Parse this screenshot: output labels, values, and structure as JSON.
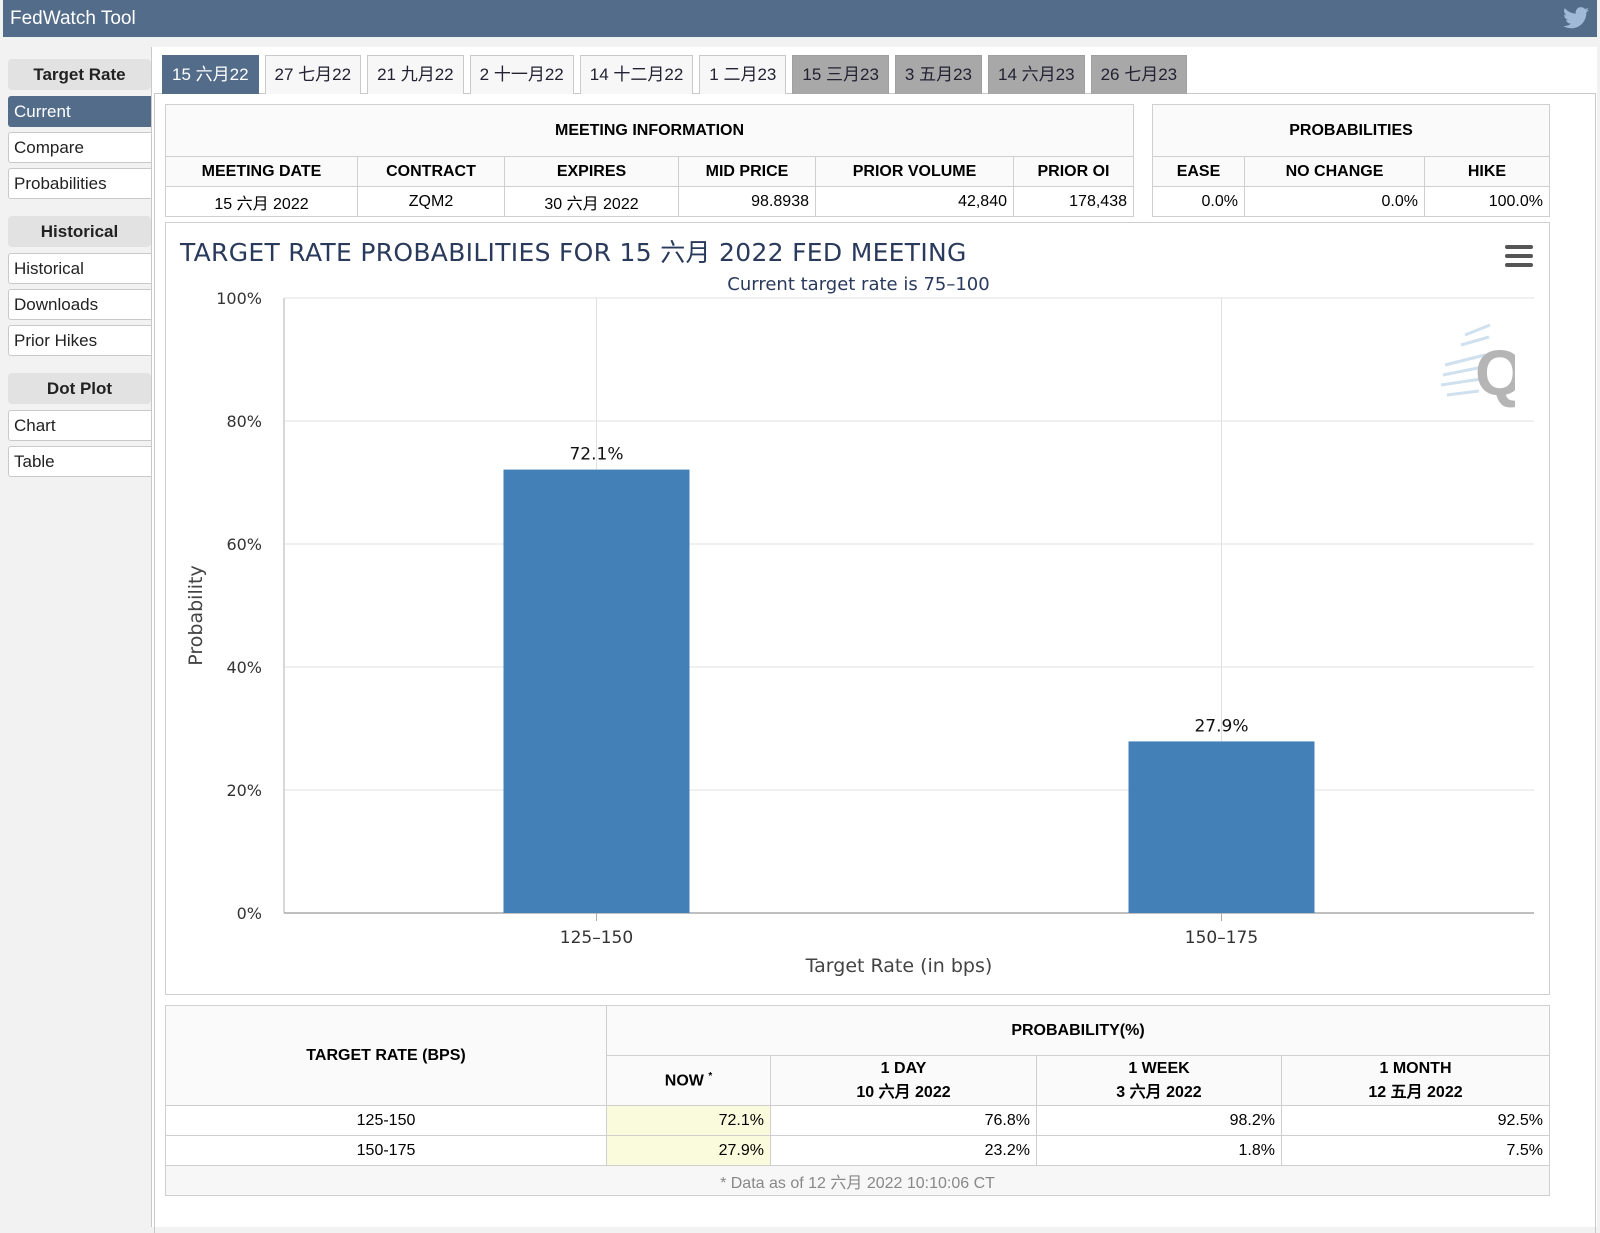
{
  "app": {
    "title": "FedWatch Tool"
  },
  "sidebar": {
    "sections": [
      {
        "heading": "Target Rate",
        "items": [
          "Current",
          "Compare",
          "Probabilities"
        ]
      },
      {
        "heading": "Historical",
        "items": [
          "Historical",
          "Downloads",
          "Prior Hikes"
        ]
      },
      {
        "heading": "Dot Plot",
        "items": [
          "Chart",
          "Table"
        ]
      }
    ],
    "active_item": "Current"
  },
  "tabs": [
    {
      "label": "15 六月22",
      "state": "active"
    },
    {
      "label": "27 七月22",
      "state": "normal"
    },
    {
      "label": "21 九月22",
      "state": "normal"
    },
    {
      "label": "2 十一月22",
      "state": "normal"
    },
    {
      "label": "14 十二月22",
      "state": "normal"
    },
    {
      "label": "1 二月23",
      "state": "normal"
    },
    {
      "label": "15 三月23",
      "state": "future"
    },
    {
      "label": "3 五月23",
      "state": "future"
    },
    {
      "label": "14 六月23",
      "state": "future"
    },
    {
      "label": "26 七月23",
      "state": "future"
    }
  ],
  "meeting_info": {
    "heading": "MEETING INFORMATION",
    "columns": [
      "MEETING DATE",
      "CONTRACT",
      "EXPIRES",
      "MID PRICE",
      "PRIOR VOLUME",
      "PRIOR OI"
    ],
    "row": [
      "15 六月 2022",
      "ZQM2",
      "30 六月 2022",
      "98.8938",
      "42,840",
      "178,438"
    ]
  },
  "probabilities": {
    "heading": "PROBABILITIES",
    "columns": [
      "EASE",
      "NO CHANGE",
      "HIKE"
    ],
    "row": [
      "0.0%",
      "0.0%",
      "100.0%"
    ]
  },
  "chart": {
    "menu_icon": "hamburger-menu-icon",
    "watermark": "Q"
  },
  "chart_data": {
    "type": "bar",
    "title": "TARGET RATE PROBABILITIES FOR 15 六月 2022 FED MEETING",
    "subtitle": "Current target rate is 75–100",
    "xlabel": "Target Rate (in bps)",
    "ylabel": "Probability",
    "categories": [
      "125–150",
      "150–175"
    ],
    "values": [
      72.1,
      27.9
    ],
    "data_labels": [
      "72.1%",
      "27.9%"
    ],
    "ylim": [
      0,
      100
    ],
    "yticks": [
      "0%",
      "20%",
      "40%",
      "60%",
      "80%",
      "100%"
    ],
    "bar_color": "#4480b8",
    "grid": true
  },
  "history": {
    "target_heading": "TARGET RATE (BPS)",
    "prob_heading": "PROBABILITY(%)",
    "now_label": "NOW",
    "now_mark": "*",
    "col_day": "1 DAY",
    "col_day_date": "10 六月 2022",
    "col_week": "1 WEEK",
    "col_week_date": "3 六月 2022",
    "col_month": "1 MONTH",
    "col_month_date": "12 五月 2022",
    "rows": [
      {
        "rate": "125-150",
        "now": "72.1%",
        "day": "76.8%",
        "week": "98.2%",
        "month": "92.5%"
      },
      {
        "rate": "150-175",
        "now": "27.9%",
        "day": "23.2%",
        "week": "1.8%",
        "month": "7.5%"
      }
    ],
    "footnote": "* Data as of 12 六月 2022 10:10:06 CT"
  }
}
